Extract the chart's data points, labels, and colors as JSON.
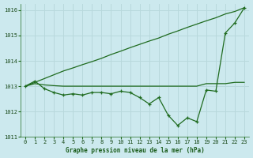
{
  "line1_jagged": [
    1013.0,
    1013.2,
    1012.9,
    1012.75,
    1012.65,
    1012.7,
    1012.65,
    1012.75,
    1012.75,
    1012.7,
    1012.8,
    1012.75,
    1012.55,
    1012.3,
    1012.55,
    1011.85,
    1011.45,
    1011.75,
    1011.6,
    1012.85,
    1012.8,
    1015.1,
    1015.5,
    1016.1
  ],
  "line2_flat": [
    1013.0,
    1013.1,
    1013.05,
    1013.02,
    1013.0,
    1013.0,
    1013.0,
    1013.0,
    1013.0,
    1013.0,
    1013.0,
    1013.0,
    1013.0,
    1013.0,
    1013.0,
    1013.0,
    1013.0,
    1013.0,
    1013.0,
    1013.1,
    1013.1,
    1013.1,
    1013.15,
    1013.15
  ],
  "line3_diag": [
    1013.0,
    1013.15,
    1013.3,
    1013.45,
    1013.6,
    1013.72,
    1013.85,
    1013.97,
    1014.1,
    1014.25,
    1014.38,
    1014.52,
    1014.65,
    1014.78,
    1014.9,
    1015.05,
    1015.18,
    1015.32,
    1015.45,
    1015.58,
    1015.7,
    1015.85,
    1015.95,
    1016.1
  ],
  "line_color": "#1f6b1f",
  "bg_color": "#cce9ee",
  "grid_color": "#b8d8dc",
  "xlabel": "Graphe pression niveau de la mer (hPa)",
  "ylim": [
    1011.0,
    1016.25
  ],
  "xlim": [
    -0.5,
    23.5
  ],
  "yticks": [
    1011,
    1012,
    1013,
    1014,
    1015,
    1016
  ],
  "xticks": [
    0,
    1,
    2,
    3,
    4,
    5,
    6,
    7,
    8,
    9,
    10,
    11,
    12,
    13,
    14,
    15,
    16,
    17,
    18,
    19,
    20,
    21,
    22,
    23
  ],
  "tick_fontsize": 5.0,
  "xlabel_fontsize": 5.5
}
